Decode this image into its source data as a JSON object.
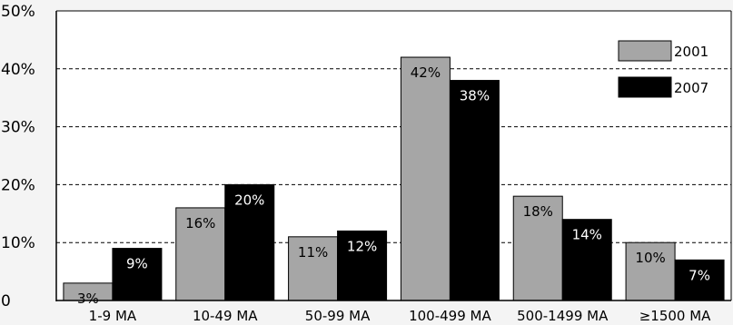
{
  "chart_data": {
    "type": "bar",
    "title": "",
    "xlabel": "",
    "ylabel": "",
    "ylim": [
      0,
      50
    ],
    "y_ticks": [
      "0",
      "10%",
      "20%",
      "30%",
      "40%",
      "50%"
    ],
    "y_tick_values": [
      0,
      10,
      20,
      30,
      40,
      50
    ],
    "grid": "horizontal-dashed",
    "legend_position": "top-right",
    "categories": [
      "1-9 MA",
      "10-49 MA",
      "50-99 MA",
      "100-499 MA",
      "500-1499 MA",
      "≥1500 MA"
    ],
    "series": [
      {
        "name": "2001",
        "color": "#a6a6a6",
        "label_color": "#000000",
        "values": [
          3,
          16,
          11,
          42,
          18,
          10
        ],
        "labels": [
          "3%",
          "16%",
          "11%",
          "42%",
          "18%",
          "10%"
        ]
      },
      {
        "name": "2007",
        "color": "#000000",
        "label_color": "#ffffff",
        "values": [
          9,
          20,
          12,
          38,
          14,
          7
        ],
        "labels": [
          "9%",
          "20%",
          "12%",
          "38%",
          "14%",
          "7%"
        ]
      }
    ]
  }
}
